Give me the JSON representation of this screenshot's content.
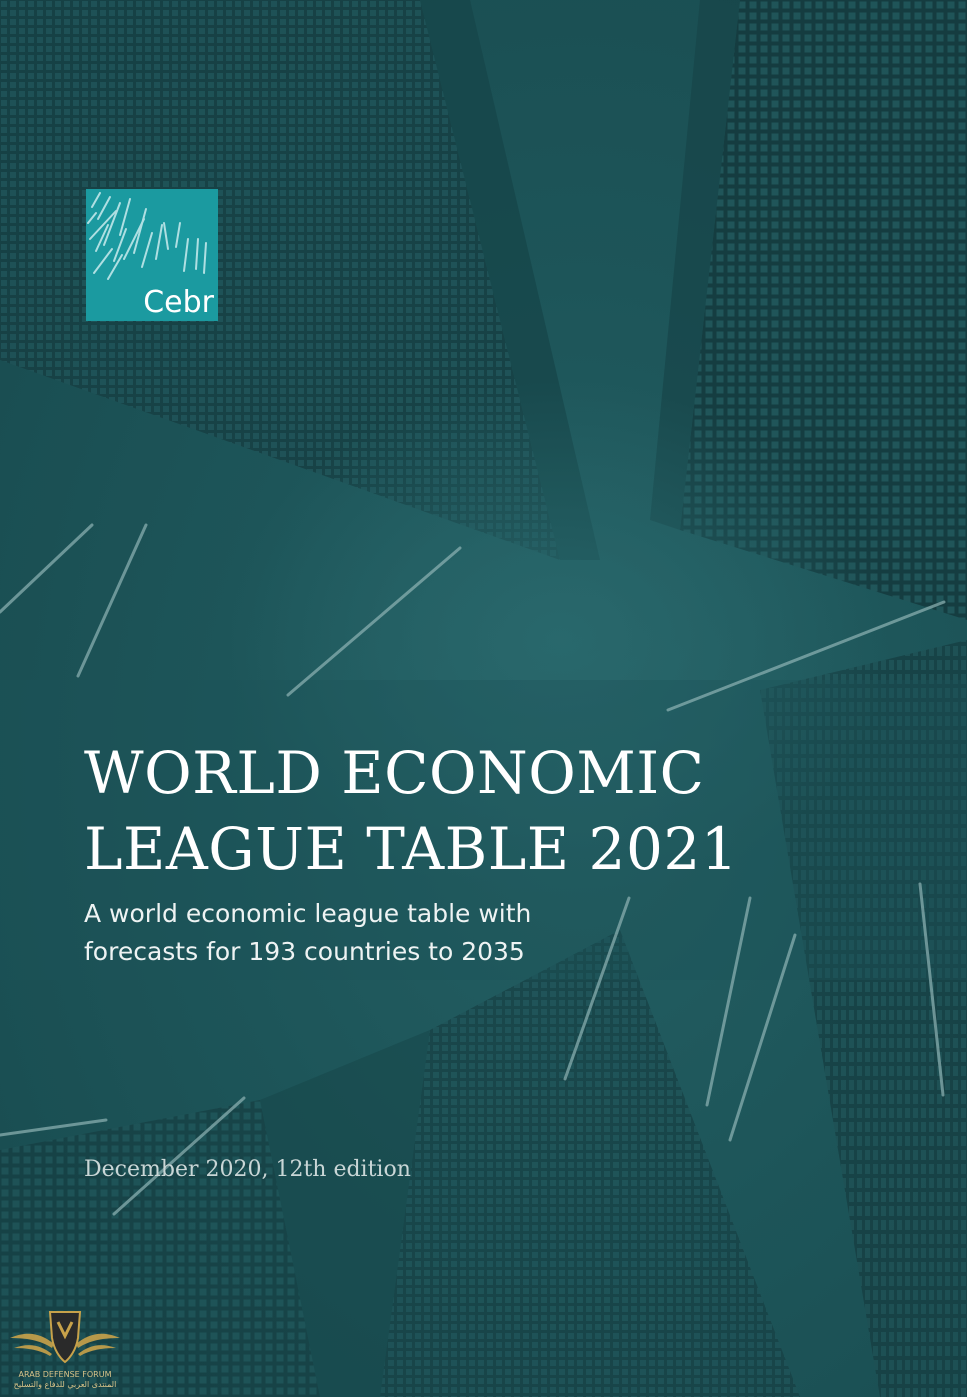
{
  "brand": {
    "logo_text": "Cebr"
  },
  "report": {
    "title_line1": "WORLD ECONOMIC",
    "title_line2": "LEAGUE TABLE 2021",
    "subtitle_line1": "A world economic league table with",
    "subtitle_line2": "forecasts for 193 countries to 2035",
    "edition": "December 2020, 12th edition"
  },
  "watermark": {
    "caption_line1": "ARAB DEFENSE FORUM",
    "caption_line2": "المنتدى العربي للدفاع والتسليح"
  },
  "colors": {
    "background": "#1d5458",
    "logo_teal": "#1b9aa0",
    "text": "#ffffff"
  }
}
